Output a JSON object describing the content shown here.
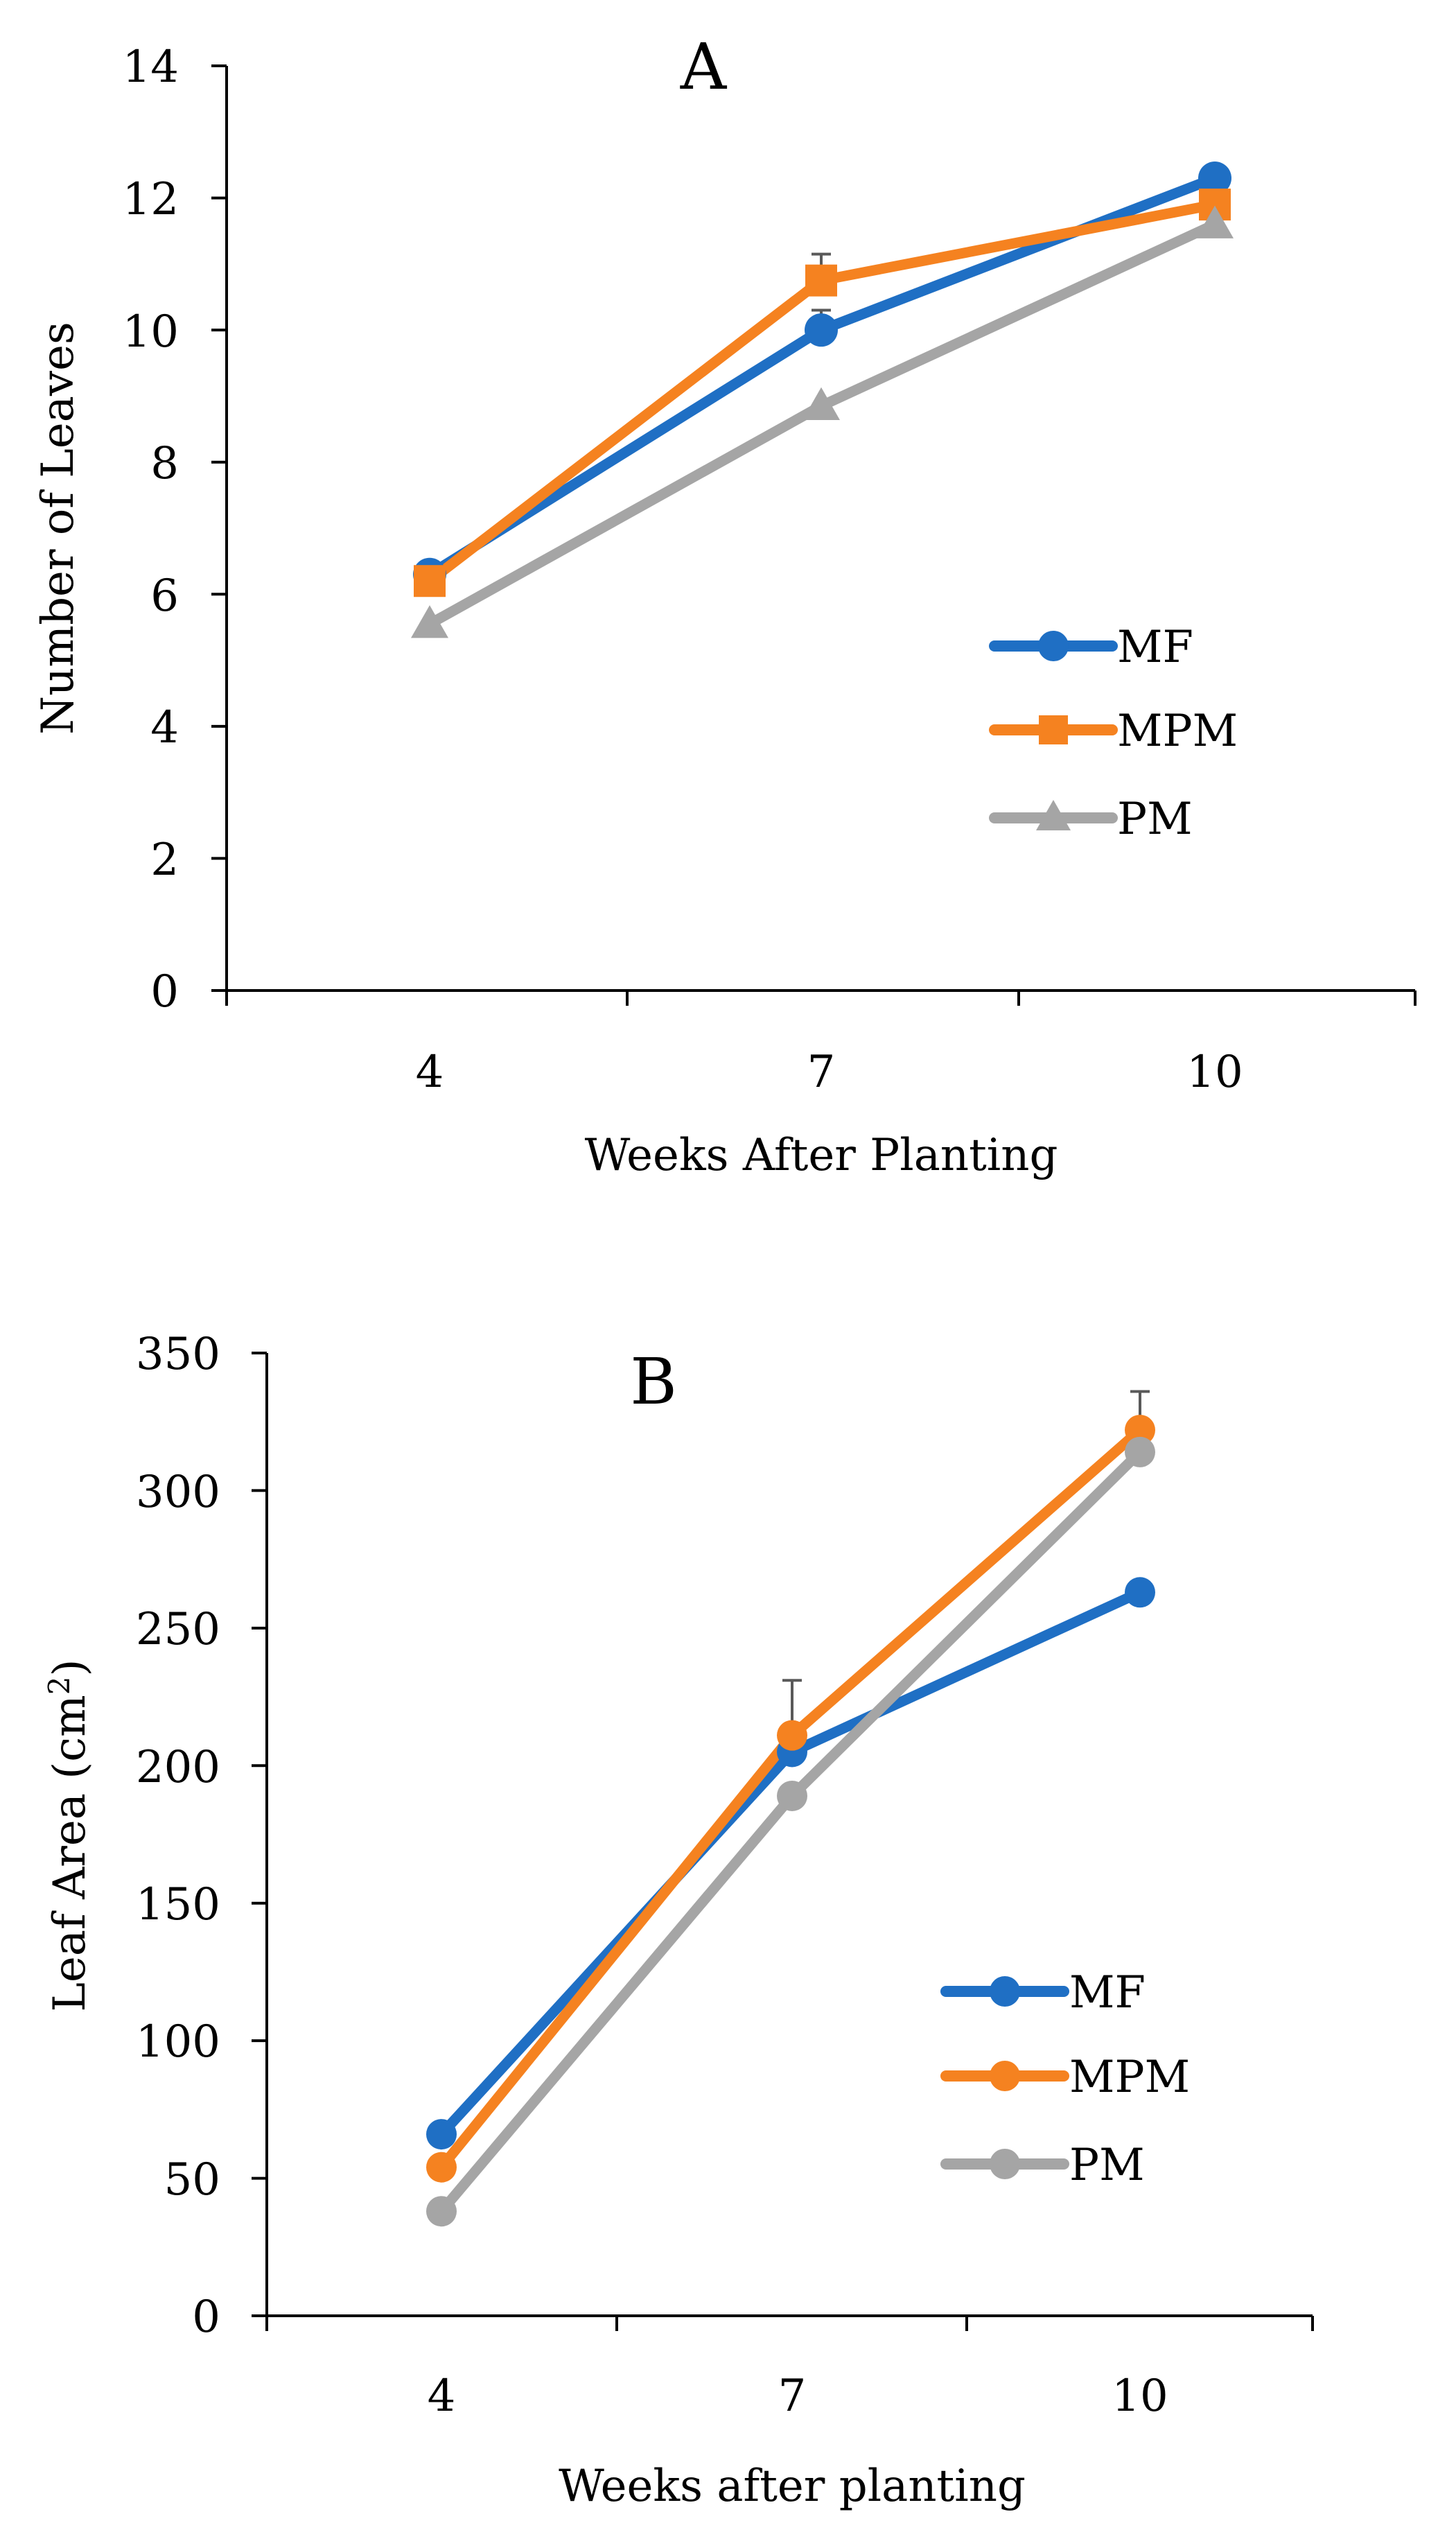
{
  "chart_data": [
    {
      "type": "line",
      "panel_label": "A",
      "xlabel": "Weeks After Planting",
      "ylabel": "Number of Leaves",
      "categories": [
        "4",
        "7",
        "10"
      ],
      "ylim": [
        0,
        14
      ],
      "yticks": [
        "0",
        "2",
        "4",
        "6",
        "8",
        "10",
        "12",
        "14"
      ],
      "legend_position": "right",
      "series": [
        {
          "name": "MF",
          "marker": "circle",
          "color": "#1f6fc4",
          "values": [
            6.3,
            10.0,
            12.3
          ],
          "errors": [
            0,
            0.3,
            0
          ]
        },
        {
          "name": "MPM",
          "marker": "square",
          "color": "#f58220",
          "values": [
            6.2,
            10.75,
            11.9
          ],
          "errors": [
            0,
            0.4,
            0
          ]
        },
        {
          "name": "PM",
          "marker": "triangle",
          "color": "#a5a5a5",
          "values": [
            5.55,
            8.85,
            11.6
          ],
          "errors": [
            0,
            0,
            0
          ]
        }
      ]
    },
    {
      "type": "line",
      "panel_label": "B",
      "xlabel": "Weeks after planting",
      "ylabel_main": "Leaf Area (cm",
      "ylabel_sup": "2",
      "ylabel_end": ")",
      "categories": [
        "4",
        "7",
        "10"
      ],
      "ylim": [
        0,
        350
      ],
      "yticks": [
        "0",
        "50",
        "100",
        "150",
        "200",
        "250",
        "300",
        "350"
      ],
      "legend_position": "right",
      "series": [
        {
          "name": "MF",
          "marker": "circle",
          "color": "#1f6fc4",
          "values": [
            66,
            205,
            263
          ],
          "errors": [
            0,
            0,
            0
          ]
        },
        {
          "name": "MPM",
          "marker": "circle",
          "color": "#f58220",
          "values": [
            54,
            211,
            322
          ],
          "errors": [
            0,
            20,
            14
          ]
        },
        {
          "name": "PM",
          "marker": "circle",
          "color": "#a5a5a5",
          "values": [
            38,
            189,
            314
          ],
          "errors": [
            0,
            0,
            0
          ]
        }
      ]
    }
  ]
}
